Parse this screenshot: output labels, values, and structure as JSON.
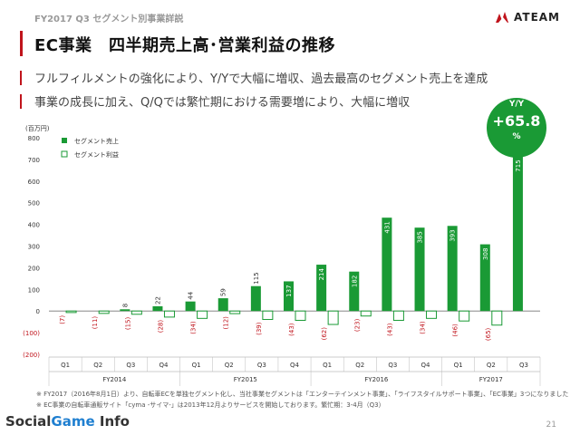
{
  "slide": {
    "breadcrumb": "FY2017 Q3 セグメント別事業詳説",
    "title": "EC事業　四半期売上高･営業利益の推移",
    "logo_text": "ATEAM",
    "bullets": [
      "フルフィルメントの強化により、Y/Yで大幅に増収、過去最高のセグメント売上を達成",
      "事業の成長に加え、Q/Qでは繁忙期における需要増により、大幅に増収"
    ],
    "yoy_label": "Y/Y",
    "yoy_value": "+65.8",
    "yoy_unit": "%",
    "notes": [
      "※ FY2017（2016年8月1日）より、自転車ECを単独セグメント化し、当社事業セグメントは「エンターテインメント事業」、「ライフスタイルサポート事業」、「EC事業」3つになりました",
      "※ EC事業の自転車通販サイト「cyma -サイマ-」は2013年12月よりサービスを開始しております。繁忙期：3-4月（Q3）"
    ],
    "footer_left_a": "Social",
    "footer_left_b": "Game",
    "footer_left_c": " Info",
    "page_number": "21",
    "colors": {
      "accent_red": "#c0141c",
      "sales_green": "#1a9a35",
      "profit_green": "#1a9a35",
      "loss_red": "#c0141c"
    }
  },
  "chart_data": {
    "type": "bar",
    "unit_label": "(百万円)",
    "ylim": [
      -200,
      800
    ],
    "yticks": [
      800,
      700,
      600,
      500,
      400,
      300,
      200,
      100,
      0,
      -100,
      -200
    ],
    "ytick_labels": [
      "800",
      "700",
      "600",
      "500",
      "400",
      "300",
      "200",
      "100",
      "0",
      "(100)",
      "(200)"
    ],
    "categories": [
      "Q1",
      "Q2",
      "Q3",
      "Q4",
      "Q1",
      "Q2",
      "Q3",
      "Q4",
      "Q1",
      "Q2",
      "Q3",
      "Q4",
      "Q1",
      "Q2",
      "Q3"
    ],
    "fiscal_years": [
      {
        "label": "FY2014",
        "start": 0,
        "end": 3
      },
      {
        "label": "FY2015",
        "start": 4,
        "end": 7
      },
      {
        "label": "FY2016",
        "start": 8,
        "end": 11
      },
      {
        "label": "FY2017",
        "start": 12,
        "end": 14
      }
    ],
    "series": [
      {
        "name": "セグメント売上",
        "style": "filled",
        "values": [
          0,
          0,
          8,
          22,
          44,
          59,
          115,
          137,
          214,
          182,
          431,
          385,
          393,
          308,
          715
        ],
        "labels": [
          "",
          "",
          "8",
          "22",
          "44",
          "59",
          "115",
          "137",
          "214",
          "182",
          "431",
          "385",
          "393",
          "308",
          "715"
        ]
      },
      {
        "name": "セグメント利益",
        "style": "outline",
        "values": [
          -7,
          -11,
          -15,
          -28,
          -34,
          -12,
          -39,
          -43,
          -62,
          -23,
          -43,
          -34,
          -46,
          -65,
          null
        ],
        "labels": [
          "(7)",
          "(11)",
          "(15)",
          "(28)",
          "(34)",
          "(12)",
          "(39)",
          "(43)",
          "(62)",
          "(23)",
          "(43)",
          "(34)",
          "(46)",
          "(65)",
          ""
        ]
      }
    ],
    "legend_position": "top-left"
  }
}
